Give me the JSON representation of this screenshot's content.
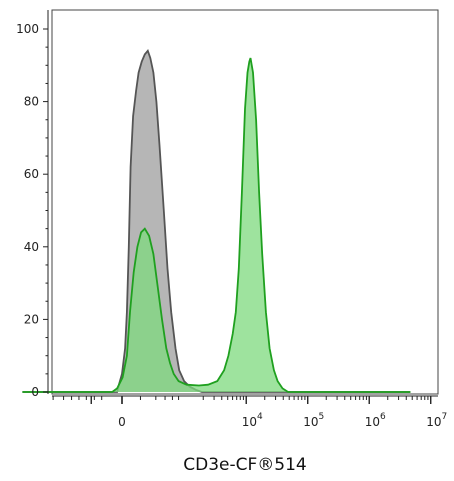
{
  "chart_data": {
    "type": "area",
    "title": "",
    "xlabel": "CD3e-CF®514",
    "ylabel": "",
    "ylim": [
      0,
      100
    ],
    "y_ticks": [
      0,
      20,
      40,
      60,
      80,
      100
    ],
    "x_scale": "biexponential",
    "x_ticks": [
      {
        "value": 0,
        "base": "0",
        "exp": ""
      },
      {
        "value": 10000,
        "base": "10",
        "exp": "4"
      },
      {
        "value": 100000,
        "base": "10",
        "exp": "5"
      },
      {
        "value": 1000000,
        "base": "10",
        "exp": "6"
      },
      {
        "value": 10000000,
        "base": "10",
        "exp": "7"
      }
    ],
    "grid": false,
    "legend": "none",
    "series": [
      {
        "color": "#555555",
        "fill": "#a9a9a9",
        "points": [
          [
            -1.62,
            0
          ],
          [
            -0.08,
            0
          ],
          [
            -0.05,
            2
          ],
          [
            0,
            5
          ],
          [
            0.05,
            12
          ],
          [
            0.08,
            22
          ],
          [
            0.11,
            40
          ],
          [
            0.14,
            62
          ],
          [
            0.18,
            76
          ],
          [
            0.23,
            83
          ],
          [
            0.27,
            88
          ],
          [
            0.32,
            91
          ],
          [
            0.37,
            93
          ],
          [
            0.42,
            94
          ],
          [
            0.46,
            92
          ],
          [
            0.51,
            88
          ],
          [
            0.56,
            80
          ],
          [
            0.61,
            68
          ],
          [
            0.68,
            50
          ],
          [
            0.74,
            34
          ],
          [
            0.8,
            22
          ],
          [
            0.87,
            12
          ],
          [
            0.93,
            6
          ],
          [
            1.01,
            3
          ],
          [
            1.1,
            1.5
          ],
          [
            1.2,
            0.6
          ],
          [
            1.3,
            0
          ],
          [
            4.69,
            0
          ]
        ]
      },
      {
        "color": "#1fa01f",
        "fill": "#7ed97e",
        "points": [
          [
            -1.62,
            0
          ],
          [
            -0.16,
            0
          ],
          [
            -0.08,
            1
          ],
          [
            0.01,
            4
          ],
          [
            0.08,
            10
          ],
          [
            0.13,
            22
          ],
          [
            0.19,
            33
          ],
          [
            0.25,
            40
          ],
          [
            0.31,
            44
          ],
          [
            0.37,
            45
          ],
          [
            0.44,
            43
          ],
          [
            0.51,
            38
          ],
          [
            0.58,
            29
          ],
          [
            0.65,
            20
          ],
          [
            0.72,
            12
          ],
          [
            0.78,
            8
          ],
          [
            0.84,
            5
          ],
          [
            0.92,
            3
          ],
          [
            1.05,
            2
          ],
          [
            1.25,
            1.8
          ],
          [
            1.4,
            2
          ],
          [
            1.55,
            3
          ],
          [
            1.66,
            6
          ],
          [
            1.73,
            10
          ],
          [
            1.8,
            16
          ],
          [
            1.85,
            22
          ],
          [
            1.9,
            34
          ],
          [
            1.95,
            55
          ],
          [
            2.0,
            78
          ],
          [
            2.04,
            88
          ],
          [
            2.07,
            91
          ],
          [
            2.09,
            92
          ],
          [
            2.13,
            88
          ],
          [
            2.18,
            75
          ],
          [
            2.23,
            55
          ],
          [
            2.28,
            38
          ],
          [
            2.34,
            22
          ],
          [
            2.4,
            12
          ],
          [
            2.47,
            6
          ],
          [
            2.53,
            3
          ],
          [
            2.61,
            1
          ],
          [
            2.7,
            0
          ],
          [
            4.69,
            0
          ]
        ]
      }
    ]
  }
}
